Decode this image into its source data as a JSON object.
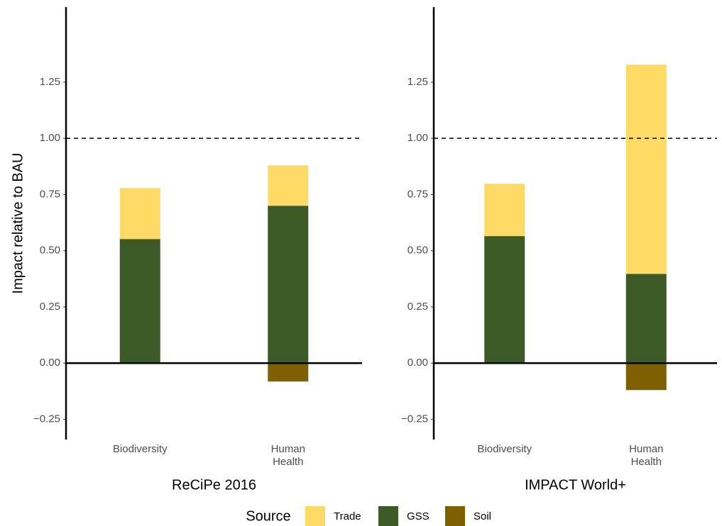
{
  "chart_data": [
    {
      "type": "bar",
      "stacked": true,
      "title": "ReCiPe 2016",
      "y_label": "Impact relative to BAU",
      "legend_title": "Source",
      "legend": "bottom",
      "hline": 1,
      "categories": [
        "Biodiversity",
        "Human Health"
      ],
      "series": [
        {
          "name": "Trade",
          "color": "#fdd966",
          "values": [
            0.227,
            0.18
          ]
        },
        {
          "name": "GSS",
          "color": "#3b5a25",
          "values": [
            0.552,
            0.7
          ]
        },
        {
          "name": "Soil",
          "color": "#7f6000",
          "values": [
            0,
            -0.082
          ]
        }
      ],
      "ylim": [
        -0.34,
        1.584
      ],
      "yticks": [
        {
          "value": -0.25,
          "label": "−0.25"
        },
        {
          "value": 0,
          "label": "0.00"
        },
        0.25,
        {
          "value": 0.5,
          "label": "0.50"
        },
        0.75,
        {
          "value": 1,
          "label": "1.00"
        },
        1.25
      ]
    },
    {
      "type": "bar",
      "stacked": true,
      "title": "IMPACT World+",
      "hline": 1,
      "categories": [
        "Biodiversity",
        "Human Health"
      ],
      "series": [
        {
          "name": "Trade",
          "color": "#fdd966",
          "values": [
            0.233,
            0.931
          ]
        },
        {
          "name": "GSS",
          "color": "#3b5a25",
          "values": [
            0.565,
            0.397
          ]
        },
        {
          "name": "Soil",
          "color": "#7f6000",
          "values": [
            0,
            -0.12
          ]
        }
      ],
      "ylim": [
        -0.34,
        1.584
      ],
      "yticks": [
        {
          "value": -0.25,
          "label": "−0.25"
        },
        {
          "value": 0,
          "label": "0.00"
        },
        0.25,
        {
          "value": 0.5,
          "label": "0.50"
        },
        0.75,
        {
          "value": 1,
          "label": "1.00"
        },
        1.25
      ]
    }
  ]
}
